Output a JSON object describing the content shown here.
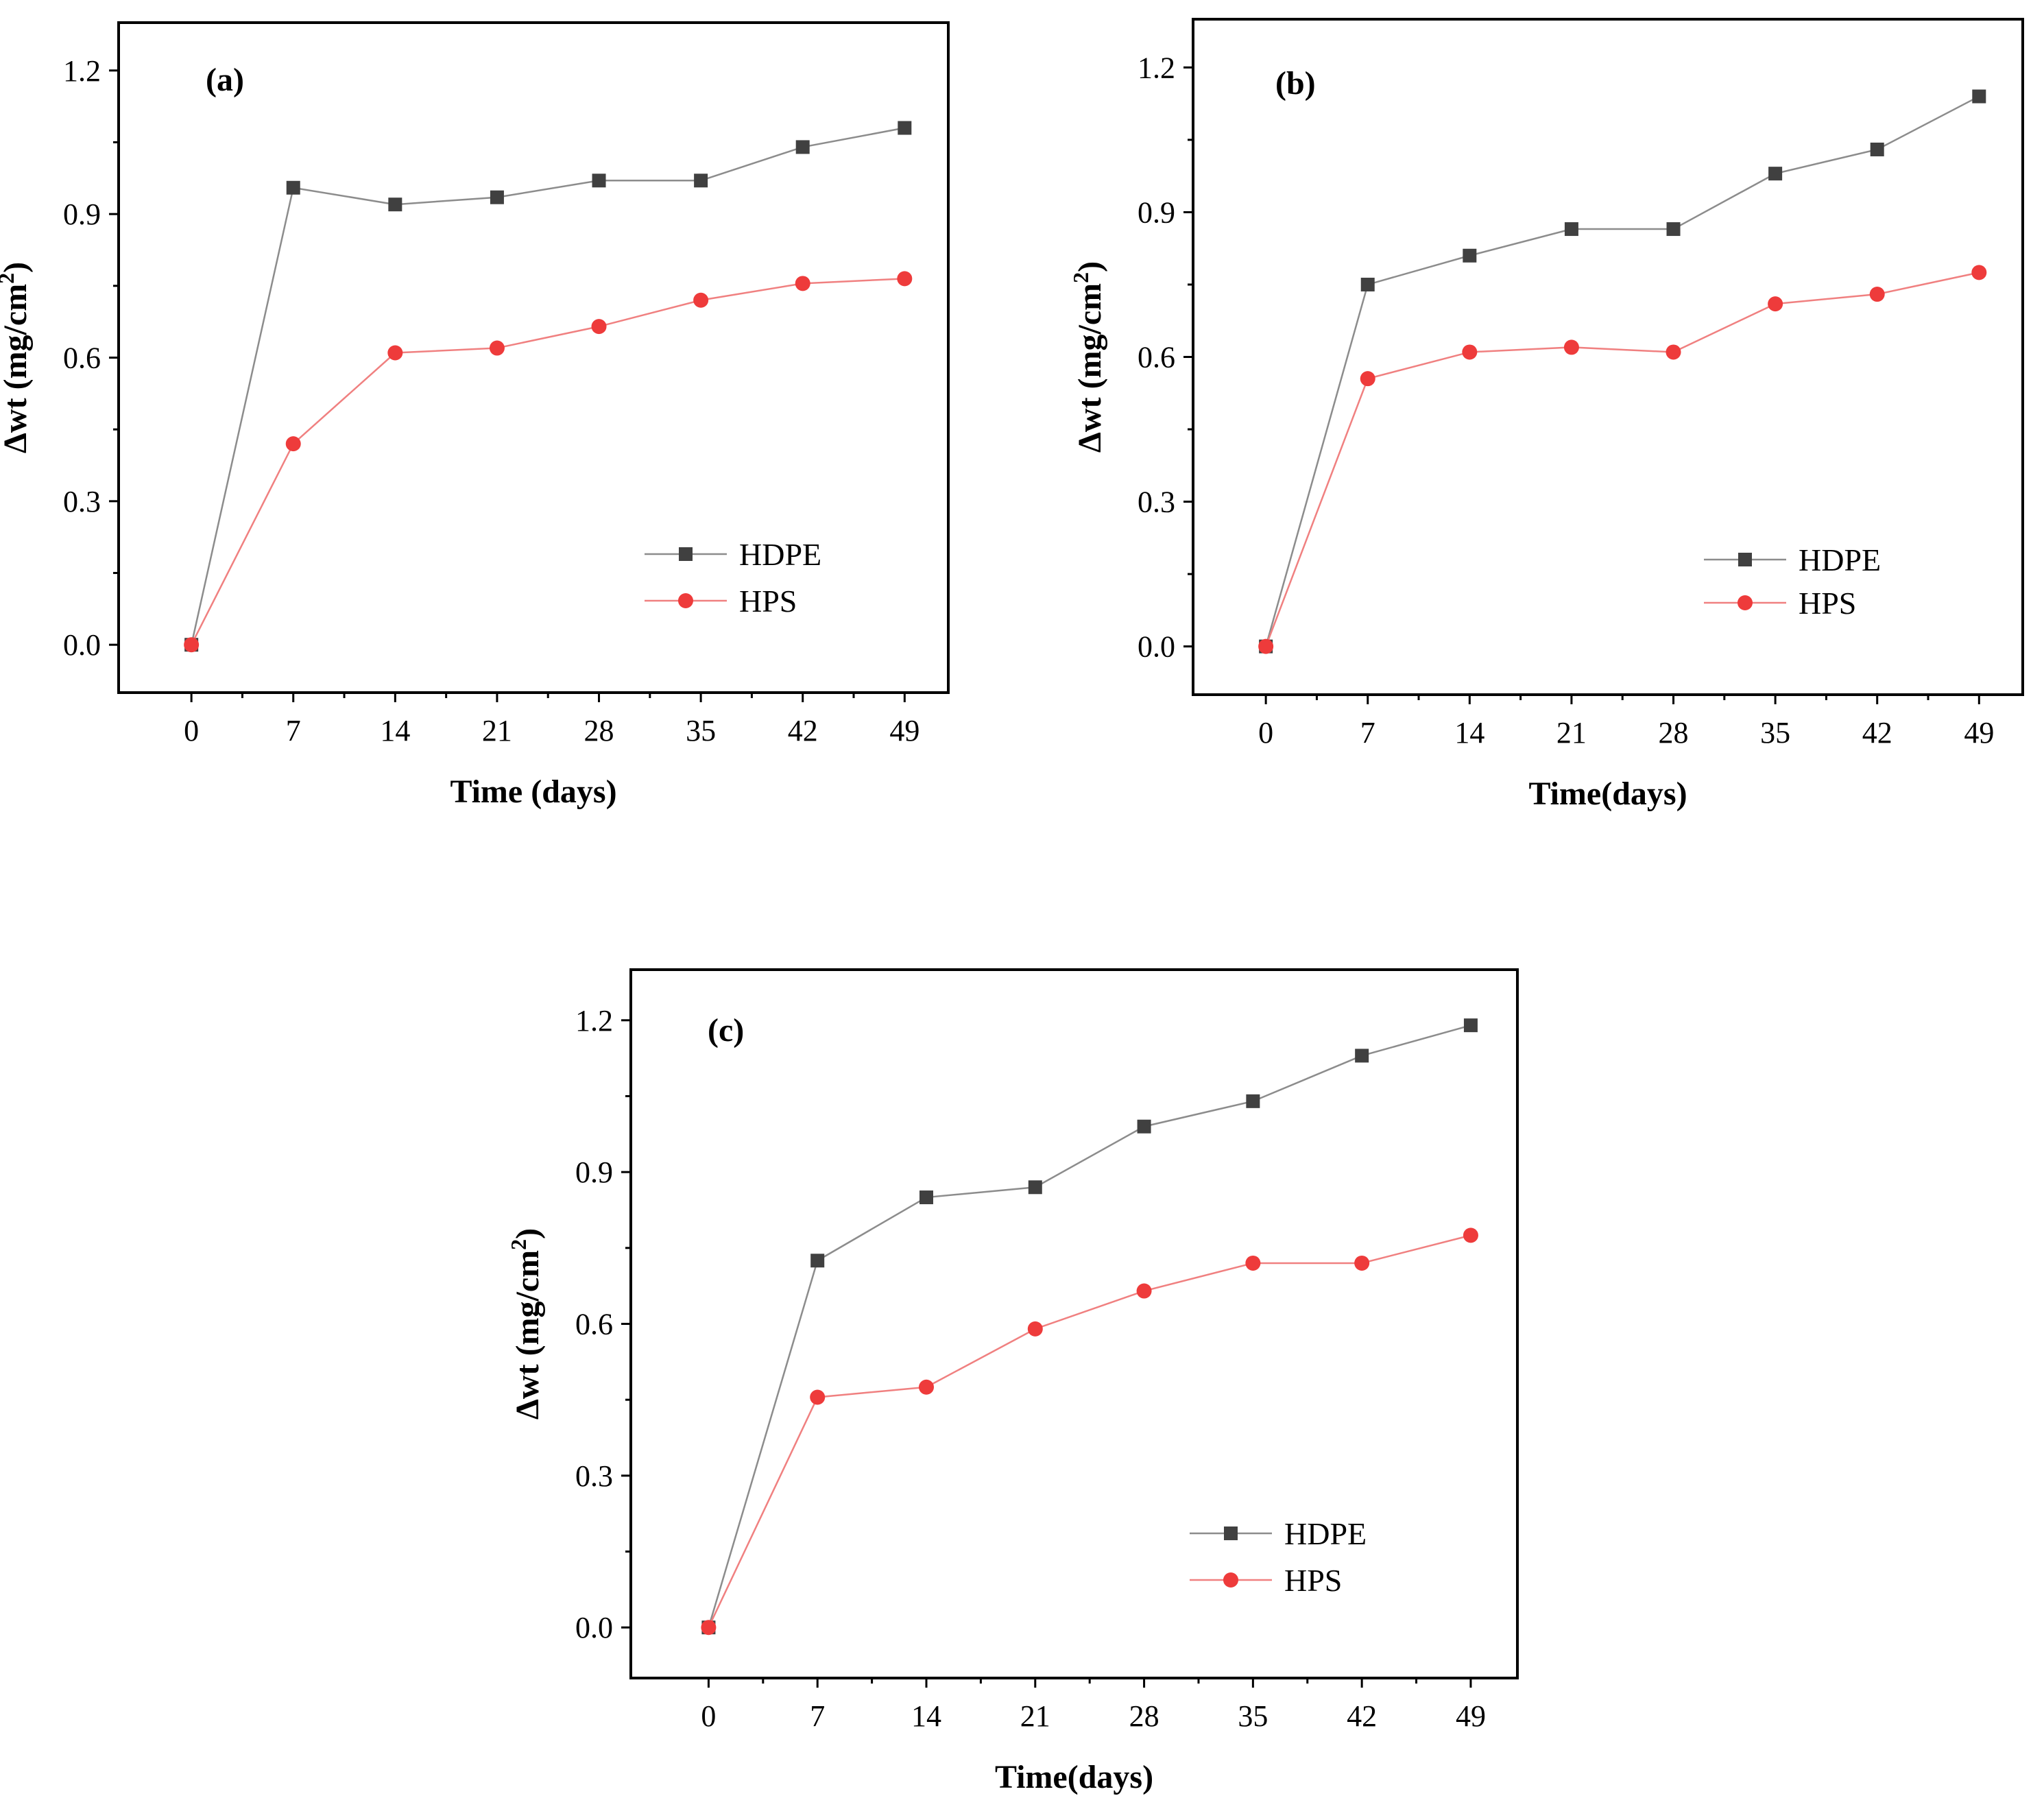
{
  "chart_data": [
    {
      "type": "line",
      "panel_label": "(a)",
      "xlabel": "Time (days)",
      "ylabel_main": "Δwt (mg/cm",
      "ylabel_sup": "2",
      "ylabel_close": ")",
      "x": [
        0,
        7,
        14,
        21,
        28,
        35,
        42,
        49
      ],
      "x_tick_labels": [
        "0",
        "7",
        "14",
        "21",
        "28",
        "35",
        "42",
        "49"
      ],
      "y_tick_labels": [
        "0.0",
        "0.3",
        "0.6",
        "0.9",
        "1.2"
      ],
      "y_ticks": [
        0.0,
        0.3,
        0.6,
        0.9,
        1.2
      ],
      "xlim": [
        -5,
        52
      ],
      "ylim": [
        -0.1,
        1.3
      ],
      "legend": "bottom-right",
      "series": [
        {
          "name": "HDPE",
          "marker": "square",
          "color": "#404040",
          "line_color": "#8c8c8c",
          "values": [
            0.0,
            0.955,
            0.92,
            0.935,
            0.97,
            0.97,
            1.04,
            1.08
          ]
        },
        {
          "name": "HPS",
          "marker": "circle",
          "color": "#ee3b3b",
          "line_color": "#f08080",
          "values": [
            0.0,
            0.42,
            0.61,
            0.62,
            0.665,
            0.72,
            0.755,
            0.765
          ]
        }
      ]
    },
    {
      "type": "line",
      "panel_label": "(b)",
      "xlabel": "Time(days)",
      "ylabel_main": "Δwt (mg/cm",
      "ylabel_sup": "2",
      "ylabel_close": ")",
      "x": [
        0,
        7,
        14,
        21,
        28,
        35,
        42,
        49
      ],
      "x_tick_labels": [
        "0",
        "7",
        "14",
        "21",
        "28",
        "35",
        "42",
        "49"
      ],
      "y_tick_labels": [
        "0.0",
        "0.3",
        "0.6",
        "0.9",
        "1.2"
      ],
      "y_ticks": [
        0.0,
        0.3,
        0.6,
        0.9,
        1.2
      ],
      "xlim": [
        -5,
        52
      ],
      "ylim": [
        -0.1,
        1.3
      ],
      "legend": "bottom-right",
      "series": [
        {
          "name": "HDPE",
          "marker": "square",
          "color": "#404040",
          "line_color": "#8c8c8c",
          "values": [
            0.0,
            0.75,
            0.81,
            0.865,
            0.865,
            0.98,
            1.03,
            1.14
          ]
        },
        {
          "name": "HPS",
          "marker": "circle",
          "color": "#ee3b3b",
          "line_color": "#f08080",
          "values": [
            0.0,
            0.555,
            0.61,
            0.62,
            0.61,
            0.71,
            0.73,
            0.775
          ]
        }
      ]
    },
    {
      "type": "line",
      "panel_label": "(c)",
      "xlabel": "Time(days)",
      "ylabel_main": "Δwt (mg/cm",
      "ylabel_sup": "2",
      "ylabel_close": ")",
      "x": [
        0,
        7,
        14,
        21,
        28,
        35,
        42,
        49
      ],
      "x_tick_labels": [
        "0",
        "7",
        "14",
        "21",
        "28",
        "35",
        "42",
        "49"
      ],
      "y_tick_labels": [
        "0.0",
        "0.3",
        "0.6",
        "0.9",
        "1.2"
      ],
      "y_ticks": [
        0.0,
        0.3,
        0.6,
        0.9,
        1.2
      ],
      "xlim": [
        -5,
        52
      ],
      "ylim": [
        -0.1,
        1.3
      ],
      "legend": "bottom-right",
      "series": [
        {
          "name": "HDPE",
          "marker": "square",
          "color": "#404040",
          "line_color": "#8c8c8c",
          "values": [
            0.0,
            0.725,
            0.85,
            0.87,
            0.99,
            1.04,
            1.13,
            1.19
          ]
        },
        {
          "name": "HPS",
          "marker": "circle",
          "color": "#ee3b3b",
          "line_color": "#f08080",
          "values": [
            0.0,
            0.455,
            0.475,
            0.59,
            0.665,
            0.72,
            0.72,
            0.775
          ]
        }
      ]
    }
  ]
}
